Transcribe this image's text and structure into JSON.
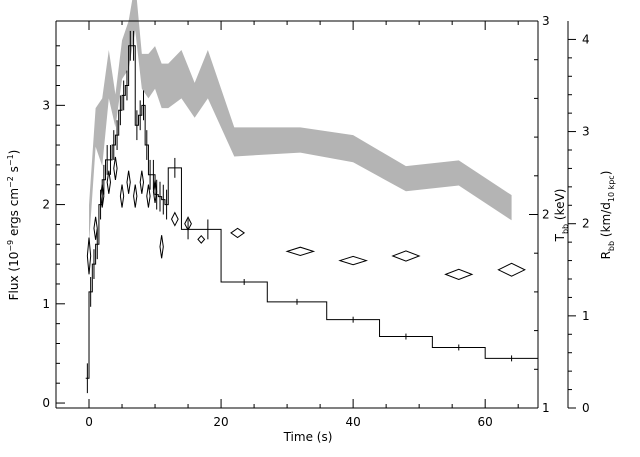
{
  "chart_data": {
    "type": "line",
    "title": "",
    "xlabel": "Time (s)",
    "ylabel_left": "Flux (10^-9 ergs cm^-2 s^-1)",
    "ylabel_right_T": "T_bb (keV)",
    "ylabel_right_R": "R_bb (km/d_10 kpc)",
    "xlim": [
      -5,
      68
    ],
    "ylim_flux": [
      -0.05,
      3.85
    ],
    "ylim_T": [
      1,
      3
    ],
    "ylim_R": [
      0,
      4.2
    ],
    "x_ticks": [
      0,
      20,
      40,
      60
    ],
    "flux_ticks": [
      0,
      1,
      2,
      3
    ],
    "T_ticks": [
      1,
      2,
      3
    ],
    "R_ticks": [
      0,
      1,
      2,
      3,
      4
    ],
    "grid": false,
    "series": [
      {
        "kind": "flux-histogram",
        "unit": "1e-9 ergs cm^-2 s^-1",
        "bins": [
          [
            -0.5,
            0,
            0.25
          ],
          [
            0,
            0.5,
            1.12
          ],
          [
            0.5,
            1,
            1.4
          ],
          [
            1,
            1.5,
            1.6
          ],
          [
            1.5,
            2,
            2.0
          ],
          [
            2,
            2.5,
            2.25
          ],
          [
            2.5,
            3,
            2.45
          ],
          [
            3,
            3.5,
            2.45
          ],
          [
            3.5,
            4,
            2.6
          ],
          [
            4,
            4.5,
            2.7
          ],
          [
            4.5,
            5,
            2.95
          ],
          [
            5,
            5.5,
            3.1
          ],
          [
            5.5,
            6,
            3.2
          ],
          [
            6,
            6.5,
            3.6
          ],
          [
            6.5,
            7,
            3.6
          ],
          [
            7,
            7.5,
            2.8
          ],
          [
            7.5,
            8,
            2.9
          ],
          [
            8,
            8.5,
            3.0
          ],
          [
            8.5,
            9,
            2.6
          ],
          [
            9,
            9.5,
            2.3
          ],
          [
            9.5,
            10,
            2.3
          ],
          [
            10,
            10.5,
            2.1
          ],
          [
            10.5,
            11,
            2.08
          ],
          [
            11,
            11.5,
            2.05
          ],
          [
            11.5,
            12,
            2.0
          ],
          [
            12,
            14,
            2.37
          ],
          [
            14,
            16,
            1.75
          ],
          [
            16,
            20,
            1.75
          ],
          [
            20,
            27,
            1.22
          ],
          [
            27,
            36,
            1.02
          ],
          [
            36,
            44,
            0.84
          ],
          [
            44,
            52,
            0.67
          ],
          [
            52,
            60,
            0.56
          ],
          [
            60,
            68,
            0.45
          ]
        ]
      },
      {
        "kind": "temperature-band",
        "unit": "keV",
        "x": [
          0,
          1,
          2,
          3,
          4,
          5,
          6,
          7,
          8,
          9,
          10,
          11,
          12,
          14,
          16,
          18,
          22,
          32,
          40,
          48,
          56,
          64
        ],
        "low": [
          1.85,
          2.35,
          2.25,
          2.6,
          2.45,
          2.7,
          2.75,
          2.95,
          2.65,
          2.6,
          2.65,
          2.55,
          2.55,
          2.6,
          2.5,
          2.6,
          2.3,
          2.32,
          2.27,
          2.12,
          2.15,
          1.97
        ],
        "high": [
          2.05,
          2.55,
          2.6,
          2.85,
          2.62,
          2.9,
          3.0,
          3.2,
          2.83,
          2.83,
          2.87,
          2.78,
          2.78,
          2.85,
          2.68,
          2.85,
          2.45,
          2.45,
          2.41,
          2.25,
          2.28,
          2.1
        ]
      },
      {
        "kind": "radius-points",
        "unit": "km/d_10 kpc",
        "points": [
          [
            0,
            1.65,
            0.5,
            0.4
          ],
          [
            1,
            1.95,
            0.5,
            0.25
          ],
          [
            2,
            2.3,
            0.5,
            0.25
          ],
          [
            3,
            2.45,
            0.5,
            0.25
          ],
          [
            4,
            2.6,
            0.5,
            0.25
          ],
          [
            5,
            2.3,
            0.5,
            0.25
          ],
          [
            6,
            2.45,
            0.5,
            0.25
          ],
          [
            7,
            2.3,
            0.5,
            0.25
          ],
          [
            8,
            2.45,
            0.5,
            0.25
          ],
          [
            9,
            2.3,
            0.5,
            0.25
          ],
          [
            10,
            2.35,
            0.5,
            0.25
          ],
          [
            11,
            1.75,
            0.5,
            0.25
          ],
          [
            13,
            2.05,
            1,
            0.14
          ],
          [
            15,
            2.0,
            1,
            0.14
          ],
          [
            17,
            1.83,
            1,
            0.08
          ],
          [
            22.5,
            1.9,
            2,
            0.1
          ],
          [
            32,
            1.7,
            4,
            0.09
          ],
          [
            40,
            1.6,
            4,
            0.09
          ],
          [
            48,
            1.65,
            4,
            0.11
          ],
          [
            56,
            1.45,
            4,
            0.11
          ],
          [
            64,
            1.5,
            4,
            0.14
          ]
        ]
      }
    ]
  }
}
